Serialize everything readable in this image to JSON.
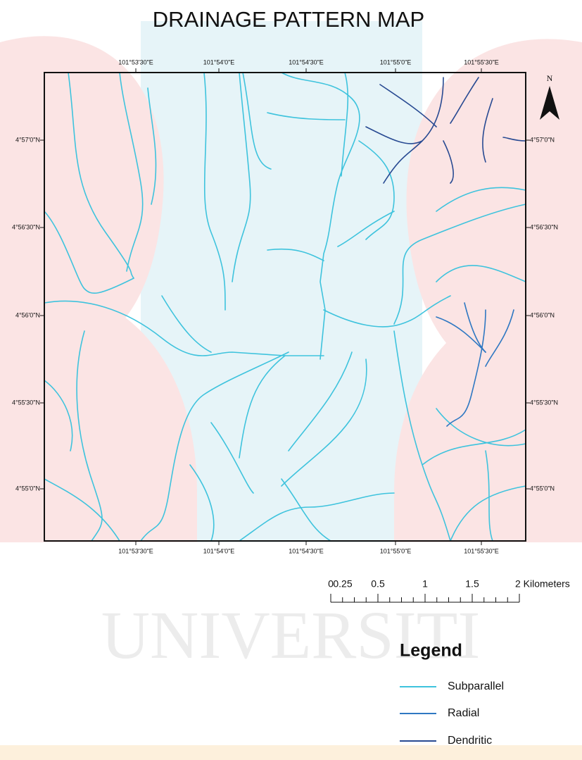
{
  "title": "DRAINAGE PATTERN MAP",
  "graticule": {
    "longitudes": [
      "101°53'30\"E",
      "101°54'0\"E",
      "101°54'30\"E",
      "101°55'0\"E",
      "101°55'30\"E"
    ],
    "latitudes": [
      "4°57'0\"N",
      "4°56'30\"N",
      "4°56'0\"N",
      "4°55'30\"N",
      "4°55'0\"N"
    ]
  },
  "north_arrow": "N",
  "scale_bar": {
    "labels": [
      "0",
      "0.25",
      "0.5",
      "1",
      "1.5",
      "2 Kilometers"
    ]
  },
  "watermark": "UNIVERSITI",
  "legend": {
    "title": "Legend",
    "items": [
      {
        "label": "Subparallel",
        "color": "#3ec3dd"
      },
      {
        "label": "Radial",
        "color": "#2f78c2"
      },
      {
        "label": "Dendritic",
        "color": "#284a92"
      }
    ]
  }
}
